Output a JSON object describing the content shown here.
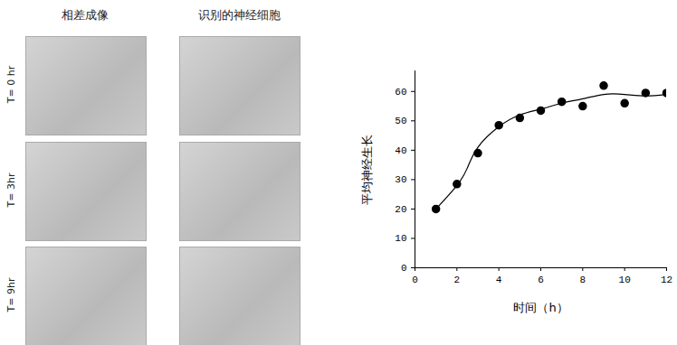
{
  "image_panels": {
    "column_titles": [
      "相差成像",
      "识别的神经细胞"
    ],
    "row_labels": [
      "T= 0 hr",
      "T= 3hr",
      "T= 9hr"
    ]
  },
  "chart_data": {
    "type": "scatter",
    "x_label": "时间（h）",
    "y_label": "平均神经生长",
    "xlim": [
      0,
      12
    ],
    "xticks": [
      0,
      2,
      4,
      6,
      8,
      10,
      12
    ],
    "ylim": [
      0,
      67
    ],
    "yticks": [
      0,
      10,
      20,
      30,
      40,
      50,
      60
    ],
    "grid": false,
    "series": [
      {
        "type": "scatter",
        "color": "#000000",
        "marker": "circle",
        "x": [
          1,
          2,
          3,
          4,
          5,
          6,
          7,
          8,
          9,
          10,
          11,
          12
        ],
        "values": [
          20,
          28.5,
          39,
          48.5,
          51,
          53.5,
          56.5,
          55,
          62,
          56,
          59.5,
          59.5
        ]
      },
      {
        "type": "line",
        "color": "#000000",
        "line_style": "solid",
        "x": [
          1,
          2,
          2.5,
          3,
          4,
          5,
          6,
          7,
          8,
          9,
          10,
          11,
          12
        ],
        "values": [
          20,
          28,
          34,
          41,
          48,
          52,
          54,
          56,
          57.5,
          59,
          59,
          58.5,
          59
        ]
      }
    ]
  }
}
